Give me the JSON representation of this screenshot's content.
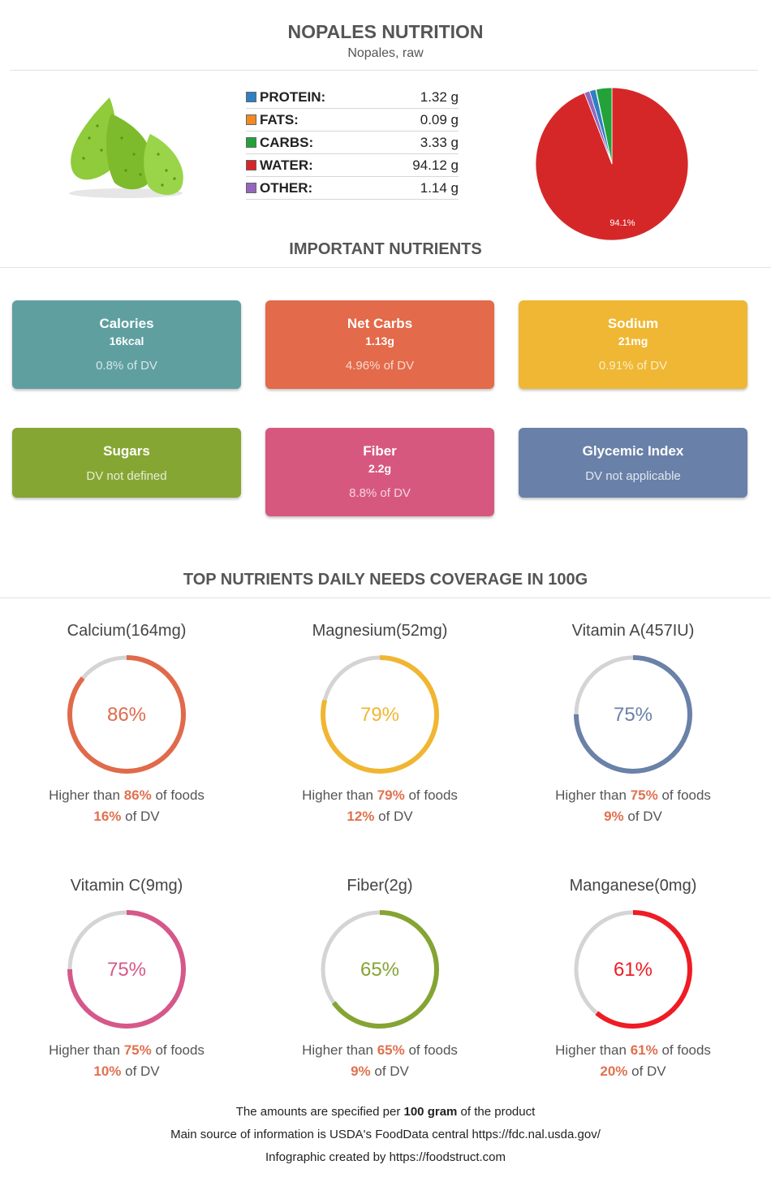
{
  "header": {
    "title": "NOPALES NUTRITION",
    "subtitle": "Nopales, raw"
  },
  "macros": [
    {
      "name": "PROTEIN:",
      "value": "1.32 g",
      "color": "#2f7fc2"
    },
    {
      "name": "FATS:",
      "value": "0.09 g",
      "color": "#f08a21"
    },
    {
      "name": "CARBS:",
      "value": "3.33 g",
      "color": "#23a23a"
    },
    {
      "name": "WATER:",
      "value": "94.12 g",
      "color": "#d62728"
    },
    {
      "name": "OTHER:",
      "value": "1.14 g",
      "color": "#9467bd"
    }
  ],
  "chart_data": {
    "type": "pie",
    "categories": [
      "PROTEIN",
      "FATS",
      "CARBS",
      "WATER",
      "OTHER"
    ],
    "values": [
      1.32,
      0.09,
      3.33,
      94.12,
      1.14
    ],
    "colors": [
      "#2f7fc2",
      "#f08a21",
      "#23a23a",
      "#d62728",
      "#9467bd"
    ],
    "slice_label": "94.1%"
  },
  "important": {
    "heading": "IMPORTANT NUTRIENTS",
    "cards": [
      {
        "title": "Calories",
        "value": "16kcal",
        "dv": "0.8% of DV",
        "color": "#5f9fa0"
      },
      {
        "title": "Net Carbs",
        "value": "1.13g",
        "dv": "4.96% of DV",
        "color": "#e36a4a"
      },
      {
        "title": "Sodium",
        "value": "21mg",
        "dv": "0.91% of DV",
        "color": "#efb733"
      },
      {
        "title": "Sugars",
        "value": "",
        "dv": "DV not defined",
        "color": "#86a633"
      },
      {
        "title": "Fiber",
        "value": "2.2g",
        "dv": "8.8% of DV",
        "color": "#d7587f"
      },
      {
        "title": "Glycemic Index",
        "value": "",
        "dv": "DV not applicable",
        "color": "#6981a8"
      }
    ]
  },
  "coverage": {
    "heading": "TOP NUTRIENTS DAILY NEEDS COVERAGE IN 100G",
    "higher_prefix": "Higher than ",
    "higher_suffix": " of foods",
    "dv_suffix": " of DV",
    "items": [
      {
        "name": "Calcium(164mg)",
        "percent": 86,
        "label": "86%",
        "dv": "16%",
        "color": "#e06a4a"
      },
      {
        "name": "Magnesium(52mg)",
        "percent": 79,
        "label": "79%",
        "dv": "12%",
        "color": "#f0b632"
      },
      {
        "name": "Vitamin A(457IU)",
        "percent": 75,
        "label": "75%",
        "dv": "9%",
        "color": "#6a81a8"
      },
      {
        "name": "Vitamin C(9mg)",
        "percent": 75,
        "label": "75%",
        "dv": "10%",
        "color": "#d6588a"
      },
      {
        "name": "Fiber(2g)",
        "percent": 65,
        "label": "65%",
        "dv": "9%",
        "color": "#84a433"
      },
      {
        "name": "Manganese(0mg)",
        "percent": 61,
        "label": "61%",
        "dv": "20%",
        "color": "#ee1c24"
      }
    ]
  },
  "footer": {
    "line1_pre": "The amounts are specified per ",
    "line1_bold": "100 gram",
    "line1_post": " of the product",
    "line2": "Main source of information is USDA's FoodData central https://fdc.nal.usda.gov/",
    "line3": "Infographic created by https://foodstruct.com"
  }
}
